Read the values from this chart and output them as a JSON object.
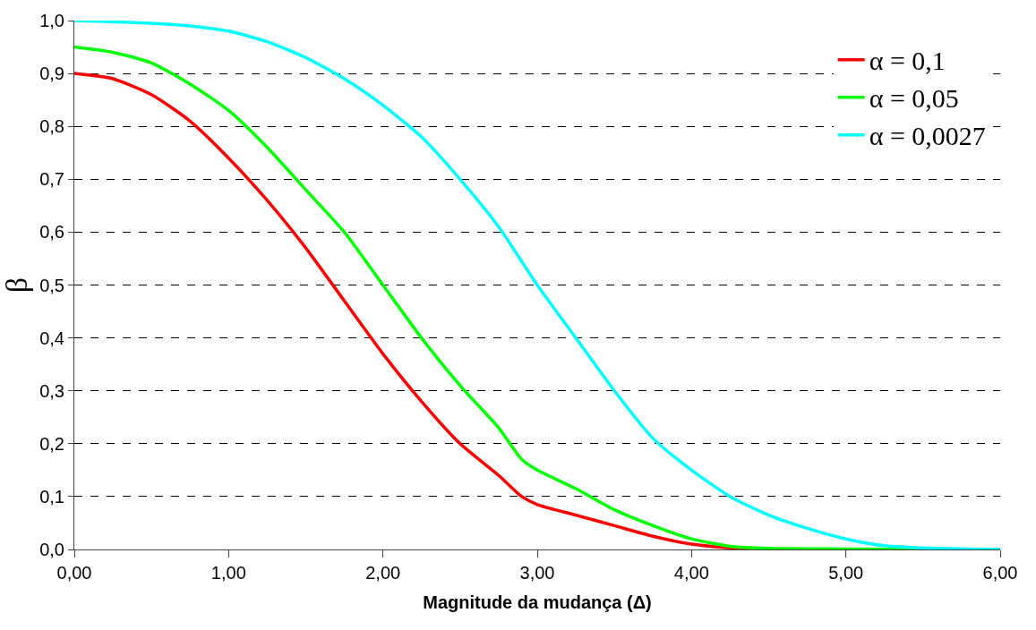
{
  "chart_data": {
    "type": "line",
    "xlabel": "Magnitude da mudança (Δ)",
    "ylabel": "β",
    "xlim": [
      0,
      6
    ],
    "ylim": [
      0,
      1
    ],
    "xticks": [
      {
        "value": 0,
        "label": "0,00"
      },
      {
        "value": 1,
        "label": "1,00"
      },
      {
        "value": 2,
        "label": "2,00"
      },
      {
        "value": 3,
        "label": "3,00"
      },
      {
        "value": 4,
        "label": "4,00"
      },
      {
        "value": 5,
        "label": "5,00"
      },
      {
        "value": 6,
        "label": "6,00"
      }
    ],
    "yticks": [
      {
        "value": 0,
        "label": "0,0"
      },
      {
        "value": 0.1,
        "label": "0,1"
      },
      {
        "value": 0.2,
        "label": "0,2"
      },
      {
        "value": 0.3,
        "label": "0,3"
      },
      {
        "value": 0.4,
        "label": "0,4"
      },
      {
        "value": 0.5,
        "label": "0,5"
      },
      {
        "value": 0.6,
        "label": "0,6"
      },
      {
        "value": 0.7,
        "label": "0,7"
      },
      {
        "value": 0.8,
        "label": "0,8"
      },
      {
        "value": 0.9,
        "label": "0,9"
      },
      {
        "value": 1,
        "label": "1,0"
      }
    ],
    "grid": "y",
    "legend": "top right",
    "line_style": "solid",
    "marker": "none",
    "series": [
      {
        "name": "α = 0,1",
        "color": "#ff0000",
        "x": [
          0,
          0.25,
          0.5,
          0.75,
          1,
          1.25,
          1.5,
          1.75,
          2,
          2.25,
          2.5,
          2.75,
          2.9,
          3,
          3.25,
          3.5,
          3.75,
          4,
          4.25,
          4.5,
          6
        ],
        "values": [
          0.9,
          0.89,
          0.86,
          0.81,
          0.74,
          0.66,
          0.57,
          0.47,
          0.37,
          0.28,
          0.2,
          0.14,
          0.1,
          0.085,
          0.065,
          0.045,
          0.025,
          0.01,
          0.003,
          0,
          0
        ]
      },
      {
        "name": "α = 0,05",
        "color": "#00ff00",
        "x": [
          0,
          0.25,
          0.5,
          0.75,
          1,
          1.25,
          1.5,
          1.75,
          2,
          2.25,
          2.5,
          2.75,
          2.9,
          3,
          3.25,
          3.5,
          3.75,
          4,
          4.25,
          4.5,
          5,
          6
        ],
        "values": [
          0.95,
          0.94,
          0.92,
          0.88,
          0.83,
          0.76,
          0.68,
          0.6,
          0.5,
          0.4,
          0.31,
          0.23,
          0.17,
          0.15,
          0.115,
          0.075,
          0.045,
          0.02,
          0.006,
          0.002,
          0.001,
          0
        ]
      },
      {
        "name": "α = 0,0027",
        "color": "#00ffff",
        "x": [
          0,
          0.5,
          0.75,
          1,
          1.25,
          1.5,
          1.75,
          2,
          2.25,
          2.5,
          2.75,
          3,
          3.25,
          3.5,
          3.75,
          4,
          4.25,
          4.5,
          4.75,
          5,
          5.25,
          5.5,
          6
        ],
        "values": [
          1,
          0.995,
          0.99,
          0.98,
          0.96,
          0.93,
          0.89,
          0.84,
          0.78,
          0.7,
          0.61,
          0.5,
          0.4,
          0.3,
          0.21,
          0.15,
          0.1,
          0.065,
          0.04,
          0.02,
          0.007,
          0.003,
          0
        ]
      }
    ]
  }
}
